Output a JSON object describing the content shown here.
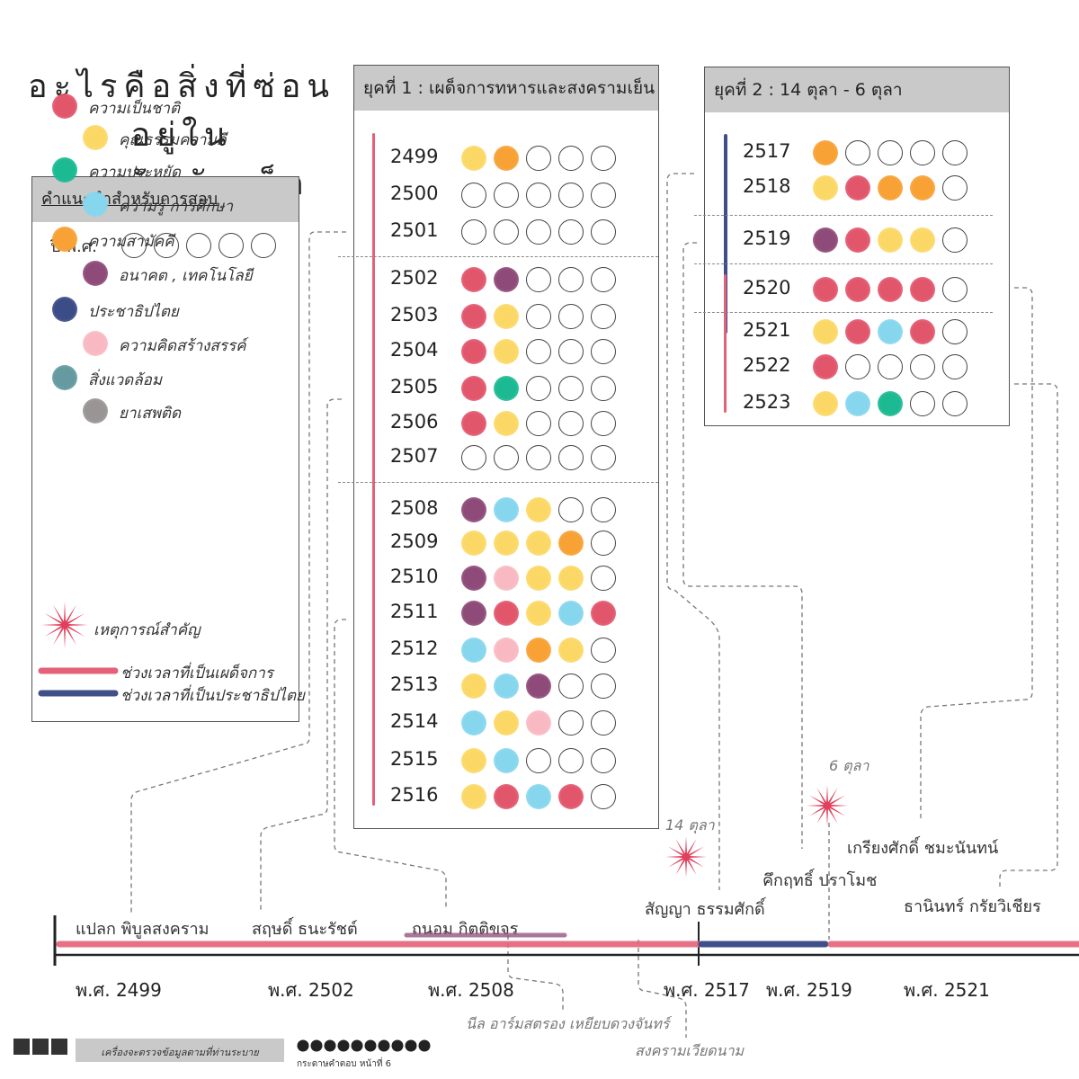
{
  "title": "อะไรคือสิ่งที่ซ่อนอยู่ใน\nคำขวัญวันเด็ก",
  "colors": {
    "nation": "#e2566c",
    "morality": "#fbd866",
    "thrift": "#1cba92",
    "knowledge": "#86d6ee",
    "unity": "#f8a135",
    "future": "#8e4a78",
    "democracy": "#3b4c86",
    "creativity": "#f9b9c2",
    "environment": "#649aa0",
    "drugs": "#999595",
    "event": "#e0405c",
    "dictator_bar": "#e4617a",
    "democracy_bar": "#3f4f88"
  },
  "legend": {
    "header": "คำแนะนำสำหรับการสอบ",
    "year_label": "ปี พ.ศ.",
    "items": [
      {
        "key": "nation",
        "label": "ความเป็นชาติ"
      },
      {
        "key": "morality",
        "label": "คุณธรรมความดี"
      },
      {
        "key": "thrift",
        "label": "ความประหยัด"
      },
      {
        "key": "knowledge",
        "label": "ความรู้ การศึกษา"
      },
      {
        "key": "unity",
        "label": "ความสามัคคี"
      },
      {
        "key": "future",
        "label": "อนาคต , เทคโนโลยี"
      },
      {
        "key": "democracy",
        "label": "ประชาธิปไตย"
      },
      {
        "key": "creativity",
        "label": "ความคิดสร้างสรรค์"
      },
      {
        "key": "environment",
        "label": "สิ่งแวดล้อม"
      },
      {
        "key": "drugs",
        "label": "ยาเสพติด"
      }
    ],
    "event_label": "เหตุการณ์สำคัญ",
    "dictator_label": "ช่วงเวลาที่เป็นเผด็จการ",
    "democracy_label": "ช่วงเวลาที่เป็นประชาธิปไตย"
  },
  "chart_data": {
    "type": "table",
    "eras": [
      {
        "title": "ยุคที่ 1 : เผด็จการทหารและสงครามเย็น",
        "rows": [
          {
            "year": "2499",
            "themes": [
              "morality",
              "unity"
            ]
          },
          {
            "year": "2500",
            "themes": []
          },
          {
            "year": "2501",
            "themes": []
          },
          {
            "year": "2502",
            "themes": [
              "nation",
              "future"
            ]
          },
          {
            "year": "2503",
            "themes": [
              "nation",
              "morality"
            ]
          },
          {
            "year": "2504",
            "themes": [
              "nation",
              "morality"
            ]
          },
          {
            "year": "2505",
            "themes": [
              "nation",
              "thrift"
            ]
          },
          {
            "year": "2506",
            "themes": [
              "nation",
              "morality"
            ]
          },
          {
            "year": "2507",
            "themes": []
          },
          {
            "year": "2508",
            "themes": [
              "future",
              "knowledge",
              "morality"
            ]
          },
          {
            "year": "2509",
            "themes": [
              "morality",
              "morality",
              "morality",
              "unity"
            ]
          },
          {
            "year": "2510",
            "themes": [
              "future",
              "creativity",
              "morality",
              "morality"
            ]
          },
          {
            "year": "2511",
            "themes": [
              "future",
              "nation",
              "morality",
              "knowledge",
              "nation"
            ]
          },
          {
            "year": "2512",
            "themes": [
              "knowledge",
              "creativity",
              "unity",
              "morality"
            ]
          },
          {
            "year": "2513",
            "themes": [
              "morality",
              "knowledge",
              "future"
            ]
          },
          {
            "year": "2514",
            "themes": [
              "knowledge",
              "morality",
              "creativity"
            ]
          },
          {
            "year": "2515",
            "themes": [
              "morality",
              "knowledge"
            ]
          },
          {
            "year": "2516",
            "themes": [
              "morality",
              "nation",
              "knowledge",
              "nation"
            ]
          }
        ]
      },
      {
        "title": "ยุคที่ 2 : 14 ตุลา -   6 ตุลา",
        "rows": [
          {
            "year": "2517",
            "themes": [
              "unity"
            ]
          },
          {
            "year": "2518",
            "themes": [
              "morality",
              "nation",
              "unity",
              "unity"
            ]
          },
          {
            "year": "2519",
            "themes": [
              "future",
              "nation",
              "morality",
              "morality"
            ]
          },
          {
            "year": "2520",
            "themes": [
              "nation",
              "nation",
              "nation",
              "nation"
            ]
          },
          {
            "year": "2521",
            "themes": [
              "morality",
              "nation",
              "knowledge",
              "nation"
            ]
          },
          {
            "year": "2522",
            "themes": [
              "nation"
            ]
          },
          {
            "year": "2523",
            "themes": [
              "morality",
              "knowledge",
              "thrift"
            ]
          }
        ]
      }
    ],
    "timeline": {
      "leaders": [
        "แปลก  พิบูลสงคราม",
        "สฤษดิ์  ธนะรัชต์",
        "ถนอม  กิตติขจร",
        "สัญญา  ธรรมศักดิ์",
        "คึกฤทธิ์  ปราโมช",
        "เกรียงศักดิ์  ชมะนันทน์",
        "ธานินทร์  กรัยวิเชียร"
      ],
      "years": [
        "พ.ศ. 2499",
        "พ.ศ. 2502",
        "พ.ศ. 2508",
        "พ.ศ. 2517",
        "พ.ศ. 2519",
        "พ.ศ. 2521"
      ],
      "events": [
        "14 ตุลา",
        "6 ตุลา"
      ],
      "notes": [
        "นีล อาร์มสตรอง เหยียบดวงจันทร์",
        "สงครามเวียดนาม"
      ]
    }
  },
  "footer": {
    "checker_label": "เครื่องจะตรวจข้อมูลตามที่ท่านระบาย",
    "page_label": "กระดาษคำตอบ  หน้าที่  6"
  }
}
